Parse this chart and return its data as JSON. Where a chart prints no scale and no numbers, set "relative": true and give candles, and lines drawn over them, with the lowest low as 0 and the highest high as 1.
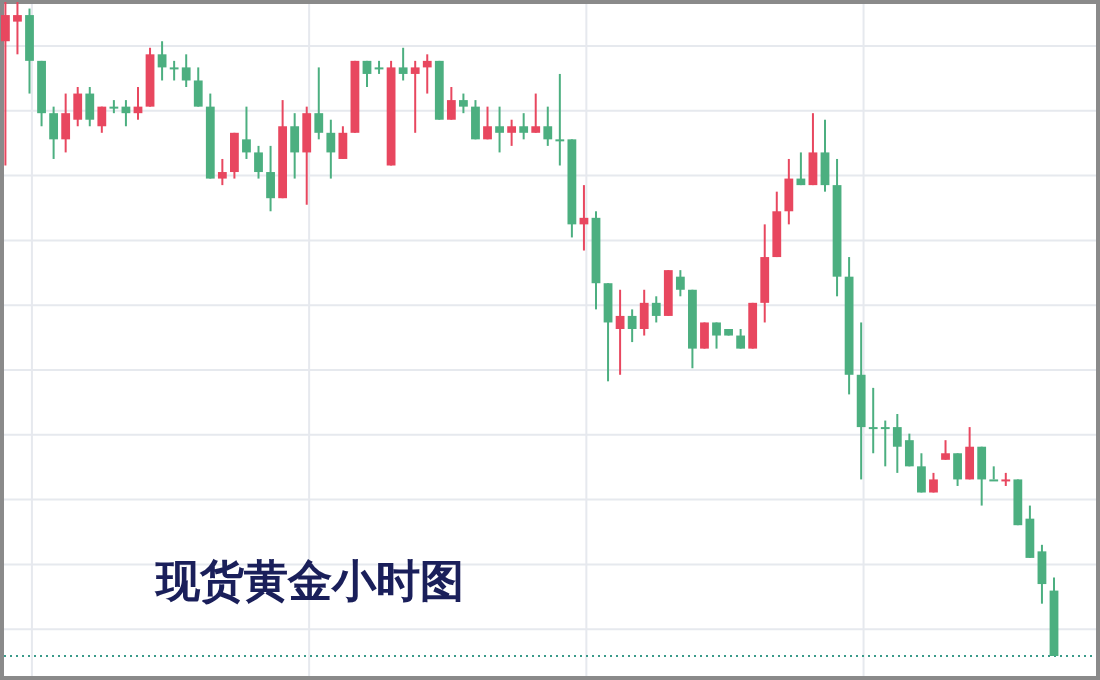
{
  "chart_data": {
    "type": "candlestick",
    "title": "现货黄金小时图",
    "relative": true,
    "grid": true,
    "categories": [
      null,
      null,
      null,
      null,
      null,
      null,
      null,
      null,
      null,
      null,
      null,
      null,
      null,
      null,
      null,
      null,
      null,
      null,
      null,
      null,
      null,
      null,
      null,
      null,
      null,
      null,
      null,
      null,
      null,
      null,
      null,
      null,
      null,
      null,
      null,
      null,
      null,
      null,
      null,
      null,
      null,
      null,
      null,
      null,
      null,
      null,
      null,
      null,
      null,
      null,
      null,
      null,
      null,
      null,
      null,
      null,
      null,
      null,
      null,
      null,
      null,
      null,
      null,
      null,
      null,
      null,
      null,
      null,
      null,
      null,
      null,
      null,
      null,
      null,
      null,
      null,
      null,
      null,
      null,
      null,
      null,
      null,
      null,
      null,
      null,
      null,
      null,
      null
    ],
    "ohlc": [
      [
        0.94,
        1.0,
        0.75,
        0.98
      ],
      [
        0.97,
        1.0,
        0.92,
        0.98
      ],
      [
        0.98,
        0.99,
        0.86,
        0.91
      ],
      [
        0.91,
        0.91,
        0.81,
        0.83
      ],
      [
        0.83,
        0.84,
        0.76,
        0.79
      ],
      [
        0.79,
        0.86,
        0.77,
        0.83
      ],
      [
        0.82,
        0.87,
        0.81,
        0.86
      ],
      [
        0.86,
        0.87,
        0.81,
        0.82
      ],
      [
        0.81,
        0.84,
        0.8,
        0.84
      ],
      [
        0.84,
        0.85,
        0.83,
        0.84
      ],
      [
        0.84,
        0.85,
        0.81,
        0.83
      ],
      [
        0.83,
        0.87,
        0.82,
        0.84
      ],
      [
        0.84,
        0.93,
        0.84,
        0.92
      ],
      [
        0.92,
        0.94,
        0.88,
        0.9
      ],
      [
        0.9,
        0.91,
        0.88,
        0.9
      ],
      [
        0.9,
        0.92,
        0.87,
        0.88
      ],
      [
        0.88,
        0.9,
        0.84,
        0.84
      ],
      [
        0.84,
        0.86,
        0.73,
        0.73
      ],
      [
        0.73,
        0.76,
        0.72,
        0.74
      ],
      [
        0.74,
        0.8,
        0.73,
        0.8
      ],
      [
        0.79,
        0.84,
        0.76,
        0.77
      ],
      [
        0.77,
        0.78,
        0.73,
        0.74
      ],
      [
        0.74,
        0.78,
        0.68,
        0.7
      ],
      [
        0.7,
        0.85,
        0.7,
        0.81
      ],
      [
        0.81,
        0.83,
        0.73,
        0.77
      ],
      [
        0.77,
        0.84,
        0.69,
        0.83
      ],
      [
        0.83,
        0.9,
        0.79,
        0.8
      ],
      [
        0.8,
        0.82,
        0.73,
        0.77
      ],
      [
        0.76,
        0.81,
        0.76,
        0.8
      ],
      [
        0.8,
        0.91,
        0.8,
        0.91
      ],
      [
        0.91,
        0.91,
        0.87,
        0.89
      ],
      [
        0.9,
        0.91,
        0.89,
        0.9
      ],
      [
        0.75,
        0.91,
        0.75,
        0.9
      ],
      [
        0.9,
        0.93,
        0.88,
        0.89
      ],
      [
        0.89,
        0.91,
        0.8,
        0.9
      ],
      [
        0.9,
        0.92,
        0.86,
        0.91
      ],
      [
        0.91,
        0.91,
        0.82,
        0.82
      ],
      [
        0.82,
        0.87,
        0.82,
        0.85
      ],
      [
        0.85,
        0.86,
        0.83,
        0.84
      ],
      [
        0.84,
        0.85,
        0.79,
        0.79
      ],
      [
        0.79,
        0.84,
        0.79,
        0.81
      ],
      [
        0.81,
        0.84,
        0.77,
        0.8
      ],
      [
        0.8,
        0.82,
        0.78,
        0.81
      ],
      [
        0.81,
        0.83,
        0.79,
        0.8
      ],
      [
        0.8,
        0.86,
        0.8,
        0.81
      ],
      [
        0.81,
        0.84,
        0.78,
        0.79
      ],
      [
        0.79,
        0.89,
        0.75,
        0.79
      ],
      [
        0.79,
        0.79,
        0.64,
        0.66
      ],
      [
        0.66,
        0.72,
        0.62,
        0.67
      ],
      [
        0.67,
        0.68,
        0.53,
        0.57
      ],
      [
        0.57,
        0.57,
        0.42,
        0.51
      ],
      [
        0.5,
        0.56,
        0.43,
        0.52
      ],
      [
        0.52,
        0.53,
        0.48,
        0.5
      ],
      [
        0.5,
        0.56,
        0.49,
        0.54
      ],
      [
        0.54,
        0.55,
        0.51,
        0.52
      ],
      [
        0.52,
        0.59,
        0.52,
        0.59
      ],
      [
        0.58,
        0.59,
        0.55,
        0.56
      ],
      [
        0.56,
        0.56,
        0.44,
        0.47
      ],
      [
        0.47,
        0.51,
        0.47,
        0.51
      ],
      [
        0.51,
        0.51,
        0.47,
        0.49
      ],
      [
        0.5,
        0.5,
        0.49,
        0.49
      ],
      [
        0.49,
        0.5,
        0.47,
        0.47
      ],
      [
        0.47,
        0.54,
        0.47,
        0.54
      ],
      [
        0.54,
        0.66,
        0.51,
        0.61
      ],
      [
        0.61,
        0.71,
        0.61,
        0.68
      ],
      [
        0.68,
        0.76,
        0.66,
        0.73
      ],
      [
        0.73,
        0.77,
        0.72,
        0.72
      ],
      [
        0.72,
        0.83,
        0.72,
        0.77
      ],
      [
        0.77,
        0.82,
        0.71,
        0.72
      ],
      [
        0.72,
        0.76,
        0.55,
        0.58
      ],
      [
        0.58,
        0.61,
        0.4,
        0.43
      ],
      [
        0.43,
        0.51,
        0.27,
        0.35
      ],
      [
        0.35,
        0.41,
        0.31,
        0.35
      ],
      [
        0.35,
        0.36,
        0.29,
        0.35
      ],
      [
        0.35,
        0.37,
        0.28,
        0.32
      ],
      [
        0.33,
        0.34,
        0.29,
        0.29
      ],
      [
        0.29,
        0.31,
        0.25,
        0.25
      ],
      [
        0.25,
        0.28,
        0.25,
        0.27
      ],
      [
        0.3,
        0.33,
        0.3,
        0.31
      ],
      [
        0.31,
        0.31,
        0.26,
        0.27
      ],
      [
        0.27,
        0.35,
        0.27,
        0.32
      ],
      [
        0.32,
        0.32,
        0.23,
        0.27
      ],
      [
        0.27,
        0.29,
        0.27,
        0.27
      ],
      [
        0.27,
        0.28,
        0.26,
        0.27
      ],
      [
        0.27,
        0.27,
        0.2,
        0.2
      ],
      [
        0.21,
        0.23,
        0.15,
        0.15
      ],
      [
        0.16,
        0.17,
        0.08,
        0.11
      ],
      [
        0.1,
        0.12,
        0,
        0
      ]
    ],
    "colors": [
      "#e8475f",
      "#e8475f",
      "#4caf80",
      "#4caf80",
      "#4caf80",
      "#e8475f",
      "#e8475f",
      "#4caf80",
      "#e8475f",
      "#4caf80",
      "#4caf80",
      "#e8475f",
      "#e8475f",
      "#4caf80",
      "#4caf80",
      "#4caf80",
      "#4caf80",
      "#4caf80",
      "#e8475f",
      "#e8475f",
      "#4caf80",
      "#4caf80",
      "#4caf80",
      "#e8475f",
      "#4caf80",
      "#e8475f",
      "#4caf80",
      "#4caf80",
      "#e8475f",
      "#e8475f",
      "#4caf80",
      "#4caf80",
      "#e8475f",
      "#4caf80",
      "#e8475f",
      "#e8475f",
      "#4caf80",
      "#e8475f",
      "#4caf80",
      "#4caf80",
      "#e8475f",
      "#4caf80",
      "#e8475f",
      "#4caf80",
      "#e8475f",
      "#4caf80",
      "#4caf80",
      "#4caf80",
      "#e8475f",
      "#4caf80",
      "#4caf80",
      "#e8475f",
      "#4caf80",
      "#e8475f",
      "#4caf80",
      "#e8475f",
      "#4caf80",
      "#4caf80",
      "#e8475f",
      "#4caf80",
      "#4caf80",
      "#4caf80",
      "#e8475f",
      "#e8475f",
      "#e8475f",
      "#e8475f",
      "#4caf80",
      "#e8475f",
      "#4caf80",
      "#4caf80",
      "#4caf80",
      "#4caf80",
      "#4caf80",
      "#4caf80",
      "#4caf80",
      "#4caf80",
      "#4caf80",
      "#e8475f",
      "#e8475f",
      "#4caf80",
      "#e8475f",
      "#4caf80",
      "#4caf80",
      "#e8475f",
      "#4caf80",
      "#4caf80",
      "#4caf80",
      "#4caf80"
    ],
    "ref_lines": [
      {
        "axis": "y",
        "value": 0,
        "color": "#3a9a8a",
        "line_style": "dotted"
      }
    ]
  }
}
